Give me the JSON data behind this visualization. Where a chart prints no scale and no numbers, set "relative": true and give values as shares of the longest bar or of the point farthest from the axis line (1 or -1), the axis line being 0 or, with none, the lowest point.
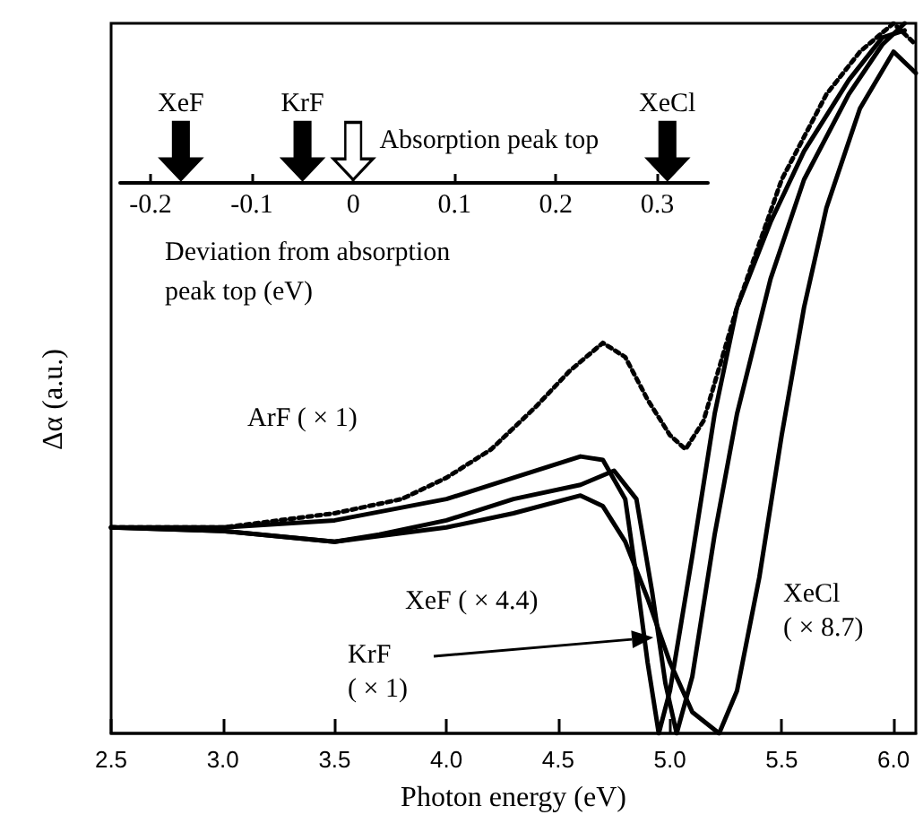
{
  "chart_data": {
    "type": "line",
    "relative": true,
    "xlabel": "Photon energy (eV)",
    "ylabel": "Δα (a.u.)",
    "xlim": [
      2.5,
      6.1
    ],
    "xticks": [
      2.5,
      {
        "value": 3,
        "label": "3.0"
      },
      3.5,
      {
        "value": 4,
        "label": "4.0"
      },
      4.5,
      {
        "value": 5,
        "label": "5.0"
      },
      5.5,
      {
        "value": 6,
        "label": "6.0"
      }
    ],
    "x2label": "Deviation from absorption\npeak top (eV)",
    "x2lim": [
      -0.23,
      0.35
    ],
    "x2ticks": [
      -0.2,
      -0.1,
      0,
      0.1,
      0.2,
      0.3
    ],
    "marker": "none",
    "grid": false,
    "series": [
      {
        "color": "#000000",
        "line_style": "dotted",
        "x": [
          2.5,
          3.0,
          3.5,
          3.8,
          4.0,
          4.2,
          4.4,
          4.55,
          4.7,
          4.8,
          4.9,
          5.0,
          5.07,
          5.15,
          5.3,
          5.5,
          5.7,
          5.85,
          6.0,
          6.1
        ],
        "values": [
          0.29,
          0.29,
          0.31,
          0.33,
          0.36,
          0.4,
          0.46,
          0.51,
          0.55,
          0.53,
          0.47,
          0.42,
          0.4,
          0.44,
          0.6,
          0.78,
          0.9,
          0.96,
          1.0,
          0.97
        ]
      },
      {
        "color": "#000000",
        "line_style": "solid",
        "x": [
          2.5,
          3.0,
          3.5,
          4.0,
          4.3,
          4.6,
          4.7,
          4.8,
          4.85,
          4.9,
          4.95,
          5.0,
          5.1,
          5.2,
          5.3,
          5.45,
          5.6,
          5.8,
          5.95,
          6.05
        ],
        "values": [
          0.29,
          0.29,
          0.3,
          0.33,
          0.36,
          0.39,
          0.385,
          0.33,
          0.22,
          0.1,
          0.0,
          0.06,
          0.25,
          0.45,
          0.6,
          0.72,
          0.82,
          0.92,
          0.98,
          0.99
        ]
      },
      {
        "color": "#000000",
        "line_style": "solid",
        "x": [
          2.5,
          3.0,
          3.5,
          3.7,
          4.0,
          4.3,
          4.6,
          4.75,
          4.85,
          4.92,
          4.98,
          5.03,
          5.1,
          5.2,
          5.3,
          5.45,
          5.6,
          5.8,
          5.95,
          6.05
        ],
        "values": [
          0.29,
          0.285,
          0.27,
          0.28,
          0.3,
          0.33,
          0.35,
          0.37,
          0.33,
          0.2,
          0.07,
          0.0,
          0.08,
          0.28,
          0.45,
          0.64,
          0.78,
          0.9,
          0.97,
          1.0
        ]
      },
      {
        "color": "#000000",
        "line_style": "solid",
        "x": [
          2.5,
          3.0,
          3.5,
          4.0,
          4.3,
          4.6,
          4.7,
          4.8,
          4.9,
          5.0,
          5.1,
          5.22,
          5.3,
          5.4,
          5.5,
          5.6,
          5.7,
          5.85,
          6.0,
          6.1
        ],
        "values": [
          0.29,
          0.285,
          0.27,
          0.29,
          0.31,
          0.335,
          0.32,
          0.27,
          0.19,
          0.1,
          0.03,
          0.0,
          0.06,
          0.22,
          0.42,
          0.6,
          0.74,
          0.88,
          0.96,
          0.93
        ]
      },
      {
        "type": "scatter",
        "axis": "x2",
        "name": "Absorption peak top",
        "color": "#ffffff",
        "x": [
          0
        ],
        "values": [
          0.82
        ]
      },
      {
        "type": "scatter",
        "axis": "x2",
        "name": "XeF",
        "color": "#000000",
        "x": [
          -0.17
        ],
        "values": [
          0.82
        ]
      },
      {
        "type": "scatter",
        "axis": "x2",
        "name": "KrF",
        "color": "#000000",
        "x": [
          -0.05
        ],
        "values": [
          0.82
        ]
      },
      {
        "type": "scatter",
        "axis": "x2",
        "name": "XeCl",
        "color": "#000000",
        "x": [
          0.31
        ],
        "values": [
          0.82
        ]
      }
    ],
    "annotations": [
      "ArF ( × 1)",
      "XeF ( × 4.4)",
      "KrF\n( × 1)",
      "XeCl\n( × 8.7)"
    ]
  }
}
